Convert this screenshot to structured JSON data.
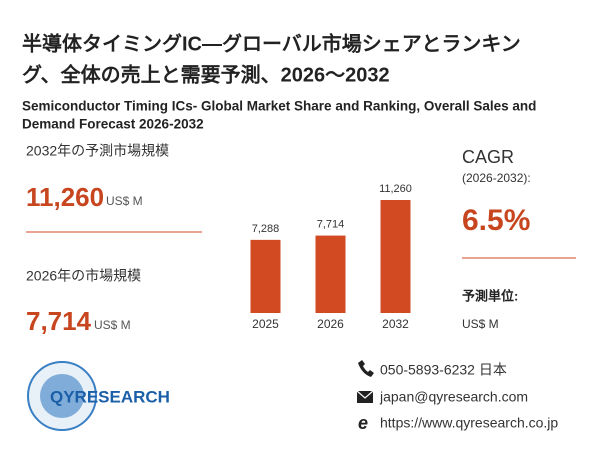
{
  "header": {
    "title_lines": [
      "半導体タイミングIC—グローバル市場シェアとランキン",
      "グ、全体の売上と需要予測、2026～2032"
    ],
    "subtitle_lines": [
      "Semiconductor Timing ICs- Global Market Share and Ranking, Overall Sales and",
      "Demand Forecast 2026-2032"
    ]
  },
  "left": {
    "forecast_label": "2032年の予測市場規模",
    "forecast_value": "11,260",
    "forecast_unit": "US$ M",
    "current_label": "2026年の市場規模",
    "current_value": "7,714",
    "current_unit": "US$ M"
  },
  "right": {
    "cagr_label": "CAGR",
    "cagr_period": "(2026-2032):",
    "cagr_value": "6.5%",
    "unit_label": "予測単位:",
    "unit_value": "US$ M"
  },
  "chart_data": {
    "type": "bar",
    "categories": [
      "2025",
      "2026",
      "2032"
    ],
    "values": [
      7288,
      7714,
      11260
    ],
    "value_labels": [
      "7,288",
      "7,714",
      "11,260"
    ],
    "color": "#d24a22"
  },
  "footer": {
    "logo": "QYRESEARCH",
    "phone": "050-5893-6232 日本",
    "email": "japan@qyresearch.com",
    "web": "https://www.qyresearch.co.jp"
  }
}
